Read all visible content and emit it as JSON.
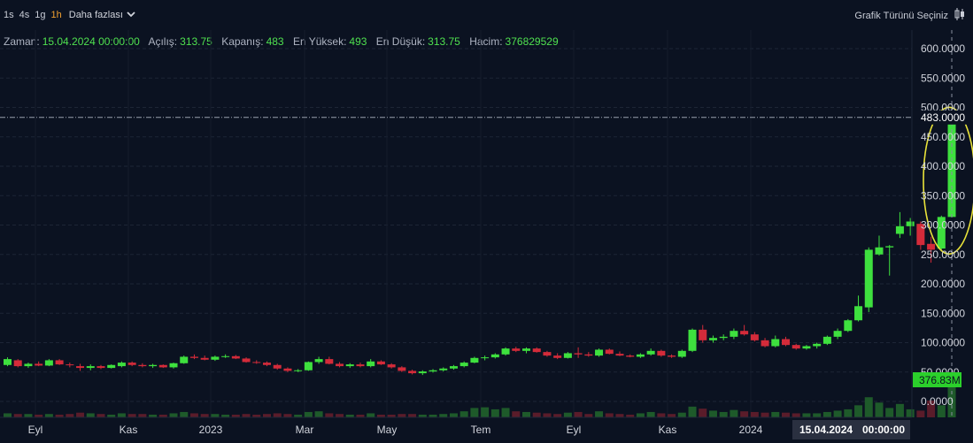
{
  "toolbar": {
    "timeframes": [
      "1s",
      "4s",
      "1g",
      "1h"
    ],
    "active_timeframe": "1h",
    "more_label": "Daha fazlası",
    "chart_type_label": "Grafik Türünü Seçiniz"
  },
  "ohlc": {
    "time_label": "Zaman:",
    "time_value": "15.04.2024 00:00:00",
    "open_label": "Açılış:",
    "open_value": "313.75",
    "close_label": "Kapanış:",
    "close_value": "483",
    "high_label": "En Yüksek:",
    "high_value": "493",
    "low_label": "En Düşük:",
    "low_value": "313.75",
    "volume_label": "Hacim:",
    "volume_value": "376829529"
  },
  "colors": {
    "background": "#0b1221",
    "up": "#3ee03e",
    "down": "#d42b3a",
    "volume_up": "#1e5a2a",
    "volume_down": "#5a1c2a",
    "highlight": "#e8e23a"
  },
  "chart_data": {
    "type": "candlestick",
    "y_ticks": [
      "600.0000",
      "550.0000",
      "500.0000",
      "450.0000",
      "400.0000",
      "350.0000",
      "300.0000",
      "250.0000",
      "200.0000",
      "150.0000",
      "100.0000",
      "50.0000",
      "0.0000"
    ],
    "price_range": [
      0,
      600
    ],
    "x_ticks": [
      "Eyl",
      "Kas",
      "2023",
      "Mar",
      "May",
      "Tem",
      "Eyl",
      "Kas",
      "2024"
    ],
    "last_price_label": "483.0000",
    "last_volume_label": "376.83M",
    "crosshair_date_label": "15.04.2024",
    "crosshair_time_label": "00:00:00",
    "highlight": "ellipse around the last candle",
    "candles": [
      {
        "o": 62,
        "h": 75,
        "l": 60,
        "c": 72
      },
      {
        "o": 70,
        "h": 72,
        "l": 58,
        "c": 60
      },
      {
        "o": 60,
        "h": 66,
        "l": 57,
        "c": 64
      },
      {
        "o": 64,
        "h": 68,
        "l": 60,
        "c": 61
      },
      {
        "o": 61,
        "h": 72,
        "l": 60,
        "c": 70
      },
      {
        "o": 70,
        "h": 72,
        "l": 62,
        "c": 63
      },
      {
        "o": 63,
        "h": 66,
        "l": 58,
        "c": 62
      },
      {
        "o": 60,
        "h": 64,
        "l": 52,
        "c": 57
      },
      {
        "o": 57,
        "h": 63,
        "l": 53,
        "c": 60
      },
      {
        "o": 60,
        "h": 62,
        "l": 55,
        "c": 57
      },
      {
        "o": 57,
        "h": 63,
        "l": 56,
        "c": 62
      },
      {
        "o": 60,
        "h": 68,
        "l": 58,
        "c": 66
      },
      {
        "o": 66,
        "h": 68,
        "l": 60,
        "c": 62
      },
      {
        "o": 62,
        "h": 65,
        "l": 58,
        "c": 60
      },
      {
        "o": 60,
        "h": 64,
        "l": 57,
        "c": 62
      },
      {
        "o": 62,
        "h": 63,
        "l": 57,
        "c": 58
      },
      {
        "o": 58,
        "h": 66,
        "l": 56,
        "c": 65
      },
      {
        "o": 65,
        "h": 78,
        "l": 64,
        "c": 76
      },
      {
        "o": 76,
        "h": 80,
        "l": 72,
        "c": 74
      },
      {
        "o": 74,
        "h": 78,
        "l": 70,
        "c": 71
      },
      {
        "o": 71,
        "h": 78,
        "l": 69,
        "c": 76
      },
      {
        "o": 76,
        "h": 80,
        "l": 74,
        "c": 77
      },
      {
        "o": 77,
        "h": 79,
        "l": 72,
        "c": 73
      },
      {
        "o": 73,
        "h": 75,
        "l": 66,
        "c": 67
      },
      {
        "o": 67,
        "h": 70,
        "l": 64,
        "c": 66
      },
      {
        "o": 66,
        "h": 68,
        "l": 60,
        "c": 62
      },
      {
        "o": 62,
        "h": 64,
        "l": 54,
        "c": 56
      },
      {
        "o": 56,
        "h": 58,
        "l": 50,
        "c": 52
      },
      {
        "o": 52,
        "h": 55,
        "l": 50,
        "c": 53
      },
      {
        "o": 53,
        "h": 68,
        "l": 52,
        "c": 67
      },
      {
        "o": 67,
        "h": 76,
        "l": 64,
        "c": 72
      },
      {
        "o": 72,
        "h": 76,
        "l": 63,
        "c": 64
      },
      {
        "o": 64,
        "h": 67,
        "l": 58,
        "c": 60
      },
      {
        "o": 60,
        "h": 65,
        "l": 57,
        "c": 63
      },
      {
        "o": 63,
        "h": 66,
        "l": 58,
        "c": 60
      },
      {
        "o": 60,
        "h": 72,
        "l": 58,
        "c": 68
      },
      {
        "o": 68,
        "h": 70,
        "l": 62,
        "c": 63
      },
      {
        "o": 63,
        "h": 65,
        "l": 56,
        "c": 58
      },
      {
        "o": 58,
        "h": 60,
        "l": 50,
        "c": 52
      },
      {
        "o": 52,
        "h": 54,
        "l": 46,
        "c": 48
      },
      {
        "o": 48,
        "h": 53,
        "l": 45,
        "c": 51
      },
      {
        "o": 51,
        "h": 55,
        "l": 49,
        "c": 53
      },
      {
        "o": 53,
        "h": 58,
        "l": 51,
        "c": 56
      },
      {
        "o": 56,
        "h": 62,
        "l": 54,
        "c": 60
      },
      {
        "o": 60,
        "h": 68,
        "l": 58,
        "c": 66
      },
      {
        "o": 66,
        "h": 76,
        "l": 65,
        "c": 74
      },
      {
        "o": 74,
        "h": 78,
        "l": 70,
        "c": 75
      },
      {
        "o": 75,
        "h": 82,
        "l": 73,
        "c": 80
      },
      {
        "o": 80,
        "h": 92,
        "l": 78,
        "c": 90
      },
      {
        "o": 90,
        "h": 93,
        "l": 84,
        "c": 86
      },
      {
        "o": 86,
        "h": 92,
        "l": 82,
        "c": 90
      },
      {
        "o": 90,
        "h": 92,
        "l": 83,
        "c": 84
      },
      {
        "o": 84,
        "h": 86,
        "l": 76,
        "c": 78
      },
      {
        "o": 78,
        "h": 82,
        "l": 72,
        "c": 74
      },
      {
        "o": 74,
        "h": 84,
        "l": 73,
        "c": 82
      },
      {
        "o": 82,
        "h": 92,
        "l": 74,
        "c": 80
      },
      {
        "o": 80,
        "h": 84,
        "l": 76,
        "c": 78
      },
      {
        "o": 78,
        "h": 90,
        "l": 76,
        "c": 88
      },
      {
        "o": 88,
        "h": 90,
        "l": 80,
        "c": 81
      },
      {
        "o": 81,
        "h": 85,
        "l": 77,
        "c": 78
      },
      {
        "o": 78,
        "h": 80,
        "l": 75,
        "c": 76
      },
      {
        "o": 76,
        "h": 82,
        "l": 74,
        "c": 80
      },
      {
        "o": 80,
        "h": 90,
        "l": 78,
        "c": 86
      },
      {
        "o": 86,
        "h": 88,
        "l": 76,
        "c": 78
      },
      {
        "o": 78,
        "h": 80,
        "l": 74,
        "c": 76
      },
      {
        "o": 76,
        "h": 88,
        "l": 74,
        "c": 86
      },
      {
        "o": 86,
        "h": 124,
        "l": 84,
        "c": 122
      },
      {
        "o": 122,
        "h": 130,
        "l": 100,
        "c": 104
      },
      {
        "o": 104,
        "h": 112,
        "l": 100,
        "c": 108
      },
      {
        "o": 108,
        "h": 114,
        "l": 104,
        "c": 110
      },
      {
        "o": 110,
        "h": 124,
        "l": 106,
        "c": 120
      },
      {
        "o": 120,
        "h": 130,
        "l": 112,
        "c": 114
      },
      {
        "o": 114,
        "h": 118,
        "l": 102,
        "c": 104
      },
      {
        "o": 104,
        "h": 108,
        "l": 92,
        "c": 94
      },
      {
        "o": 94,
        "h": 112,
        "l": 92,
        "c": 106
      },
      {
        "o": 106,
        "h": 110,
        "l": 94,
        "c": 96
      },
      {
        "o": 96,
        "h": 98,
        "l": 88,
        "c": 90
      },
      {
        "o": 90,
        "h": 96,
        "l": 88,
        "c": 94
      },
      {
        "o": 94,
        "h": 100,
        "l": 90,
        "c": 98
      },
      {
        "o": 98,
        "h": 112,
        "l": 96,
        "c": 110
      },
      {
        "o": 110,
        "h": 124,
        "l": 106,
        "c": 120
      },
      {
        "o": 120,
        "h": 140,
        "l": 118,
        "c": 138
      },
      {
        "o": 138,
        "h": 180,
        "l": 136,
        "c": 162
      },
      {
        "o": 160,
        "h": 262,
        "l": 152,
        "c": 258
      },
      {
        "o": 250,
        "h": 282,
        "l": 248,
        "c": 262
      },
      {
        "o": 262,
        "h": 266,
        "l": 214,
        "c": 264
      },
      {
        "o": 285,
        "h": 322,
        "l": 278,
        "c": 298
      },
      {
        "o": 298,
        "h": 312,
        "l": 282,
        "c": 306
      },
      {
        "o": 302,
        "h": 306,
        "l": 258,
        "c": 266
      },
      {
        "o": 268,
        "h": 280,
        "l": 236,
        "c": 258
      },
      {
        "o": 260,
        "h": 316,
        "l": 258,
        "c": 313.75
      },
      {
        "o": 313.75,
        "h": 493,
        "l": 313.75,
        "c": 483
      }
    ],
    "volume": [
      {
        "v": 6,
        "up": true
      },
      {
        "v": 5,
        "up": false
      },
      {
        "v": 5,
        "up": true
      },
      {
        "v": 4,
        "up": false
      },
      {
        "v": 5,
        "up": true
      },
      {
        "v": 4,
        "up": false
      },
      {
        "v": 5,
        "up": false
      },
      {
        "v": 7,
        "up": false
      },
      {
        "v": 6,
        "up": true
      },
      {
        "v": 5,
        "up": false
      },
      {
        "v": 4,
        "up": true
      },
      {
        "v": 6,
        "up": true
      },
      {
        "v": 5,
        "up": false
      },
      {
        "v": 5,
        "up": false
      },
      {
        "v": 4,
        "up": true
      },
      {
        "v": 4,
        "up": false
      },
      {
        "v": 6,
        "up": true
      },
      {
        "v": 8,
        "up": true
      },
      {
        "v": 6,
        "up": false
      },
      {
        "v": 5,
        "up": false
      },
      {
        "v": 5,
        "up": true
      },
      {
        "v": 4,
        "up": true
      },
      {
        "v": 4,
        "up": false
      },
      {
        "v": 5,
        "up": false
      },
      {
        "v": 4,
        "up": false
      },
      {
        "v": 5,
        "up": false
      },
      {
        "v": 6,
        "up": false
      },
      {
        "v": 5,
        "up": false
      },
      {
        "v": 4,
        "up": true
      },
      {
        "v": 8,
        "up": true
      },
      {
        "v": 9,
        "up": true
      },
      {
        "v": 6,
        "up": false
      },
      {
        "v": 5,
        "up": false
      },
      {
        "v": 4,
        "up": true
      },
      {
        "v": 4,
        "up": false
      },
      {
        "v": 6,
        "up": true
      },
      {
        "v": 4,
        "up": false
      },
      {
        "v": 4,
        "up": false
      },
      {
        "v": 5,
        "up": false
      },
      {
        "v": 5,
        "up": false
      },
      {
        "v": 4,
        "up": true
      },
      {
        "v": 4,
        "up": true
      },
      {
        "v": 5,
        "up": true
      },
      {
        "v": 6,
        "up": true
      },
      {
        "v": 9,
        "up": true
      },
      {
        "v": 14,
        "up": true
      },
      {
        "v": 15,
        "up": true
      },
      {
        "v": 12,
        "up": true
      },
      {
        "v": 14,
        "up": true
      },
      {
        "v": 9,
        "up": false
      },
      {
        "v": 8,
        "up": true
      },
      {
        "v": 7,
        "up": false
      },
      {
        "v": 6,
        "up": false
      },
      {
        "v": 5,
        "up": false
      },
      {
        "v": 7,
        "up": true
      },
      {
        "v": 8,
        "up": false
      },
      {
        "v": 5,
        "up": false
      },
      {
        "v": 9,
        "up": true
      },
      {
        "v": 6,
        "up": false
      },
      {
        "v": 5,
        "up": false
      },
      {
        "v": 4,
        "up": false
      },
      {
        "v": 6,
        "up": true
      },
      {
        "v": 8,
        "up": true
      },
      {
        "v": 6,
        "up": false
      },
      {
        "v": 5,
        "up": false
      },
      {
        "v": 7,
        "up": true
      },
      {
        "v": 16,
        "up": true
      },
      {
        "v": 13,
        "up": false
      },
      {
        "v": 10,
        "up": true
      },
      {
        "v": 8,
        "up": true
      },
      {
        "v": 11,
        "up": true
      },
      {
        "v": 9,
        "up": false
      },
      {
        "v": 8,
        "up": false
      },
      {
        "v": 7,
        "up": false
      },
      {
        "v": 8,
        "up": true
      },
      {
        "v": 7,
        "up": false
      },
      {
        "v": 6,
        "up": false
      },
      {
        "v": 6,
        "up": true
      },
      {
        "v": 6,
        "up": true
      },
      {
        "v": 8,
        "up": true
      },
      {
        "v": 10,
        "up": true
      },
      {
        "v": 12,
        "up": true
      },
      {
        "v": 18,
        "up": true
      },
      {
        "v": 30,
        "up": true
      },
      {
        "v": 22,
        "up": true
      },
      {
        "v": 14,
        "up": true
      },
      {
        "v": 20,
        "up": true
      },
      {
        "v": 12,
        "up": true
      },
      {
        "v": 10,
        "up": false
      },
      {
        "v": 25,
        "up": false
      },
      {
        "v": 18,
        "up": true
      },
      {
        "v": 58,
        "up": true
      }
    ]
  }
}
